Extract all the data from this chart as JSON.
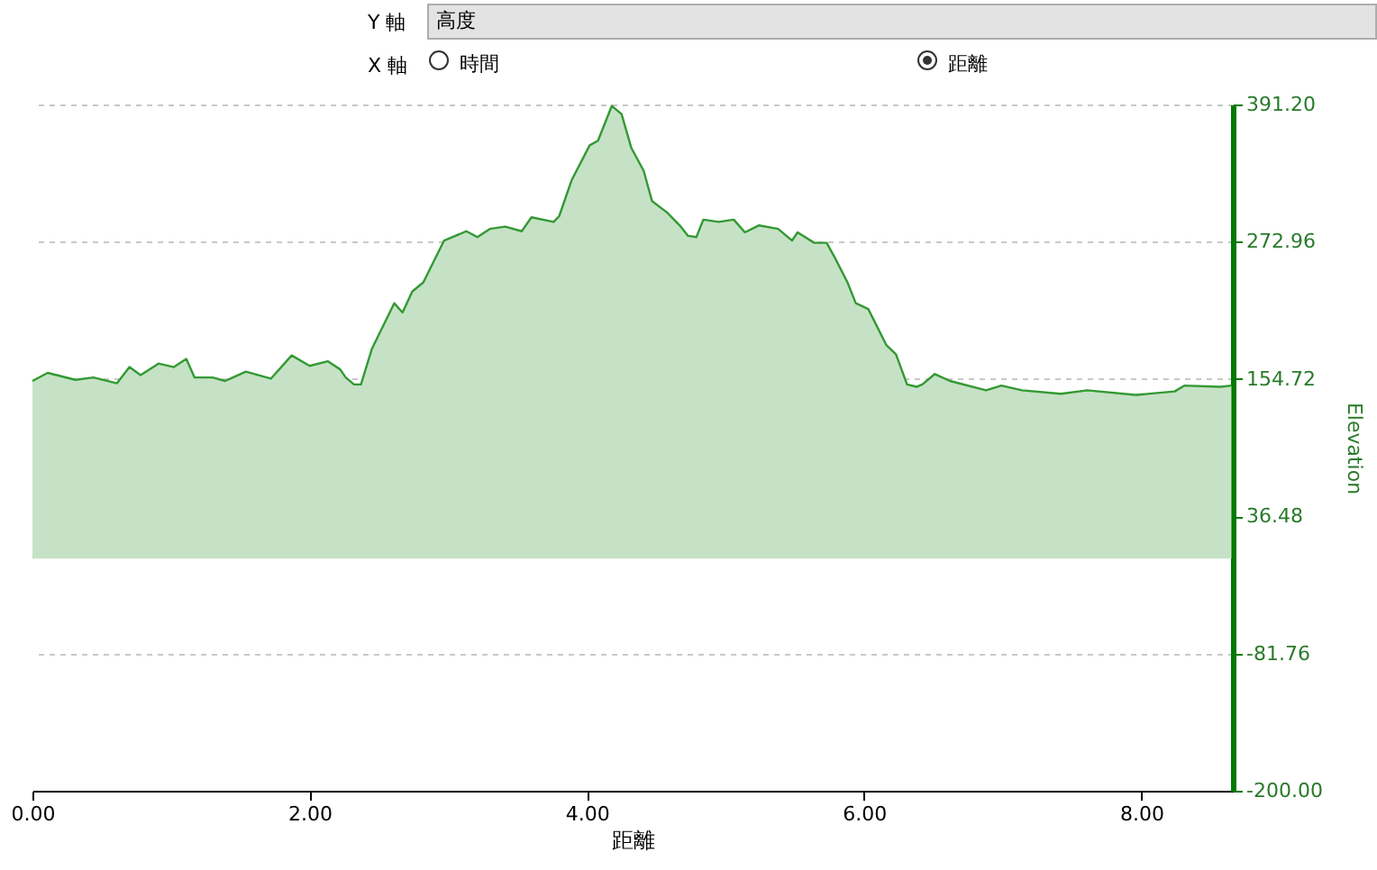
{
  "chart_data": {
    "type": "area",
    "xlabel": "距離",
    "ylabel": "Elevation",
    "annotations": [
      "Y 軸",
      "高度",
      "X 軸",
      "時間",
      "距離"
    ],
    "xlim": [
      0,
      8.66
    ],
    "xticks": [
      {
        "value": 0,
        "label": "0.00"
      },
      {
        "value": 2,
        "label": "2.00"
      },
      {
        "value": 4,
        "label": "4.00"
      },
      {
        "value": 6,
        "label": "6.00"
      },
      {
        "value": 8,
        "label": "8.00"
      }
    ],
    "ylim": [
      -200,
      391.2
    ],
    "yticks": [
      {
        "value": -200,
        "label": "-200.00"
      },
      {
        "value": -81.76,
        "label": "-81.76"
      },
      {
        "value": 36.48,
        "label": "36.48"
      },
      {
        "value": 154.72,
        "label": "154.72"
      },
      {
        "value": 272.96,
        "label": "272.96"
      },
      {
        "value": 391.2,
        "label": "391.20"
      }
    ],
    "grid": "y",
    "x": [
      0,
      0.11,
      0.31,
      0.44,
      0.61,
      0.7,
      0.78,
      0.91,
      1.02,
      1.11,
      1.17,
      1.3,
      1.39,
      1.54,
      1.72,
      1.87,
      2,
      2.13,
      2.22,
      2.26,
      2.32,
      2.37,
      2.45,
      2.61,
      2.67,
      2.74,
      2.82,
      2.97,
      3.13,
      3.21,
      3.3,
      3.41,
      3.53,
      3.6,
      3.76,
      3.8,
      3.89,
      4.02,
      4.08,
      4.18,
      4.25,
      4.32,
      4.41,
      4.47,
      4.58,
      4.67,
      4.73,
      4.79,
      4.84,
      4.95,
      5.06,
      5.14,
      5.24,
      5.38,
      5.48,
      5.52,
      5.64,
      5.73,
      5.79,
      5.88,
      5.94,
      6.03,
      6.16,
      6.23,
      6.31,
      6.38,
      6.42,
      6.51,
      6.62,
      6.88,
      6.99,
      7.14,
      7.42,
      7.61,
      7.96,
      8.24,
      8.31,
      8.57,
      8.65
    ],
    "series": [
      {
        "color": "#339933",
        "values": [
          153,
          160,
          154,
          156,
          151,
          165,
          158,
          168,
          165,
          172,
          156,
          156,
          153,
          161,
          155,
          175,
          166,
          170,
          163,
          156,
          150,
          150,
          181,
          220,
          212,
          230,
          238,
          274,
          282,
          277,
          284,
          286,
          282,
          294,
          290,
          295,
          326,
          356,
          360,
          390,
          383,
          354,
          334,
          308,
          298,
          287,
          278,
          277,
          292,
          290,
          292,
          281,
          287,
          284,
          274,
          281,
          272,
          272,
          259,
          238,
          220,
          215,
          184,
          176,
          150,
          148,
          150,
          159,
          153,
          145,
          149,
          145,
          142,
          145,
          141,
          144,
          149,
          148,
          149
        ]
      }
    ]
  }
}
